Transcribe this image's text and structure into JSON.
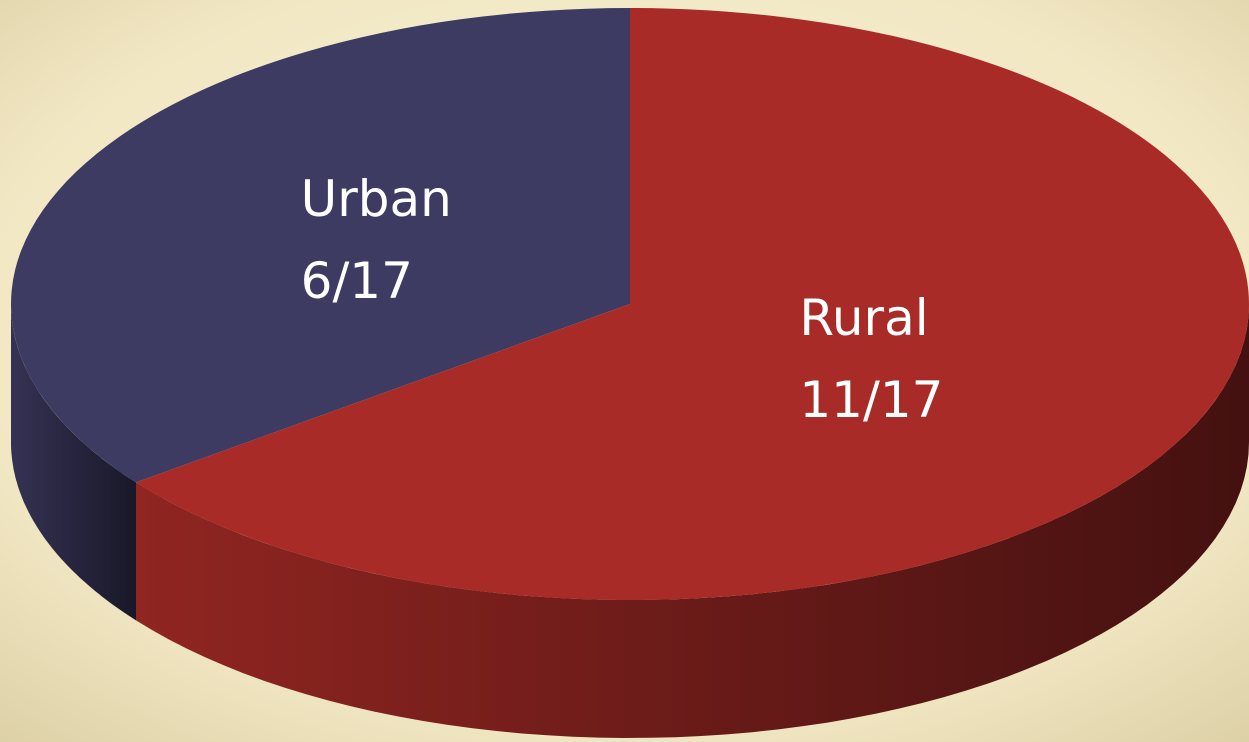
{
  "chart_data": {
    "type": "pie",
    "categories": [
      "Urban",
      "Rural"
    ],
    "values": [
      6,
      11
    ],
    "value_labels": [
      "6/17",
      "11/17"
    ],
    "colors": [
      "#3e3b63",
      "#a92b27"
    ]
  }
}
